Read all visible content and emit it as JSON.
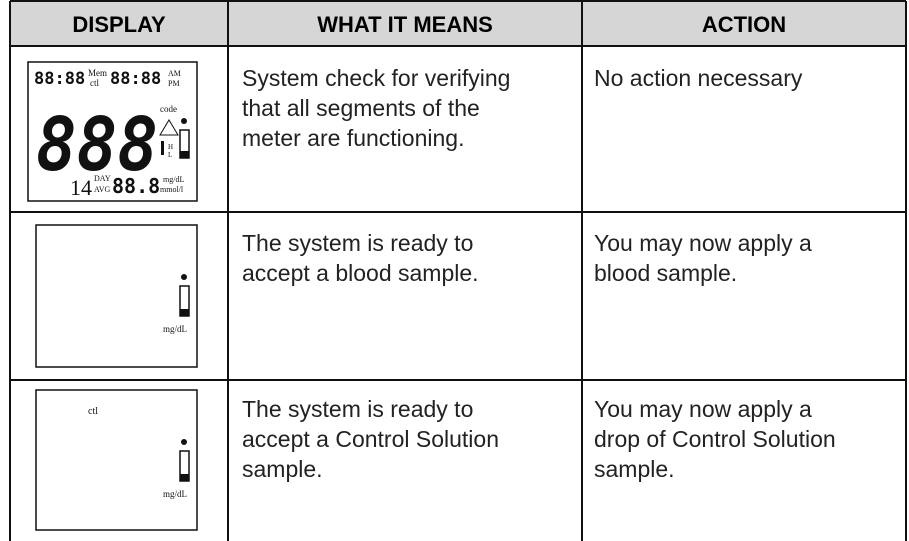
{
  "table": {
    "header": [
      "DISPLAY",
      "WHAT IT MEANS",
      "ACTION"
    ],
    "rows": [
      {
        "display": {
          "time1": "88:88",
          "mem": "Mem",
          "ctl": "ctl",
          "time2": "88:88",
          "am": "AM",
          "pm": "PM",
          "code": "code",
          "main": "888",
          "h": "H",
          "l": "L",
          "days": "14",
          "day": "DAY",
          "avg": "AVG",
          "avg_value": "88.8",
          "unit1": "mg/dL",
          "unit2": "mmol/l"
        },
        "meaning": [
          "System check for verifying",
          "that all segments of the",
          "meter are functioning."
        ],
        "action": [
          "No action necessary"
        ]
      },
      {
        "display": {
          "unit": "mg/dL"
        },
        "meaning": [
          "The system is ready to",
          "accept a blood sample."
        ],
        "action": [
          "You may now apply a",
          "blood sample."
        ]
      },
      {
        "display": {
          "ctl": "ctl",
          "unit": "mg/dL"
        },
        "meaning": [
          "The system is ready to",
          "accept a Control Solution",
          "sample."
        ],
        "action": [
          "You may now apply a",
          "drop of Control Solution",
          "sample."
        ]
      }
    ]
  }
}
